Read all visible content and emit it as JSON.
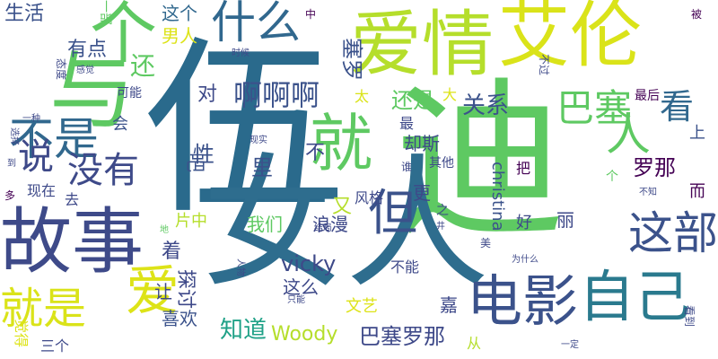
{
  "word_cloud": {
    "background": "#ffffff",
    "words": [
      {
        "text": "伍",
        "color": "#2a6a8c"
      },
      {
        "text": "迪",
        "color": "#5ec962"
      },
      {
        "text": "女人",
        "color": "#2e6d8e"
      },
      {
        "text": "爱情",
        "color": "#b5de2b"
      },
      {
        "text": "艾伦",
        "color": "#dae319"
      },
      {
        "text": "与",
        "color": "#5ec962"
      },
      {
        "text": "个",
        "color": "#5ec962"
      },
      {
        "text": "故事",
        "color": "#3e4a89"
      },
      {
        "text": "就",
        "color": "#5ec962"
      },
      {
        "text": "电影",
        "color": "#3b528b"
      },
      {
        "text": "自己",
        "color": "#2a7a8e"
      },
      {
        "text": "爱",
        "color": "#dde318"
      },
      {
        "text": "就是",
        "color": "#dae319"
      },
      {
        "text": "不是",
        "color": "#31688e"
      },
      {
        "text": "什么",
        "color": "#31688e"
      },
      {
        "text": "说",
        "color": "#3e4989"
      },
      {
        "text": "没有",
        "color": "#3e4a89"
      },
      {
        "text": "但",
        "color": "#3b528b"
      },
      {
        "text": "这部",
        "color": "#3b528b"
      },
      {
        "text": "人",
        "color": "#5ec962"
      },
      {
        "text": "巴塞",
        "color": "#5ec962"
      },
      {
        "text": "看",
        "color": "#31688e"
      },
      {
        "text": "啊啊啊",
        "color": "#3b528b"
      },
      {
        "text": "罗那",
        "color": "#440154"
      },
      {
        "text": "巴塞罗那",
        "color": "#3e4989"
      },
      {
        "text": "知道",
        "color": "#1fa187"
      },
      {
        "text": "Woody",
        "color": "#b5de2b"
      },
      {
        "text": "vicky",
        "color": "#3e4a89"
      },
      {
        "text": "生活",
        "color": "#3b528b"
      },
      {
        "text": "有点",
        "color": "#3b528b"
      },
      {
        "text": "还",
        "color": "#5ec962"
      },
      {
        "text": "这个",
        "color": "#31688e"
      },
      {
        "text": "男人",
        "color": "#dde318"
      },
      {
        "text": "塞罗",
        "color": "#3b528b"
      },
      {
        "text": "关系",
        "color": "#3b528b"
      },
      {
        "text": "还是",
        "color": "#5ec962"
      },
      {
        "text": "对",
        "color": "#3e4a89"
      },
      {
        "text": "性",
        "color": "#3b528b"
      },
      {
        "text": "里",
        "color": "#3b528b"
      },
      {
        "text": "吧",
        "color": "#3b528b"
      },
      {
        "text": "不",
        "color": "#3e4989"
      },
      {
        "text": "又",
        "color": "#b5de2b"
      },
      {
        "text": "浪漫",
        "color": "#3e4989"
      },
      {
        "text": "我们",
        "color": "#5ec962"
      },
      {
        "text": "着",
        "color": "#3e4989"
      },
      {
        "text": "让",
        "color": "#3e4989"
      },
      {
        "text": "探讨",
        "color": "#3e4989"
      },
      {
        "text": "喜欢",
        "color": "#3b528b"
      },
      {
        "text": "这么",
        "color": "#3e4989"
      },
      {
        "text": "文艺",
        "color": "#dde318"
      },
      {
        "text": "斯",
        "color": "#3e4989"
      },
      {
        "text": "却",
        "color": "#3e4989"
      },
      {
        "text": "更",
        "color": "#3e4989"
      },
      {
        "text": "风格",
        "color": "#3e4989"
      },
      {
        "text": "不能",
        "color": "#3e4989"
      },
      {
        "text": "嘉",
        "color": "#3e4989"
      },
      {
        "text": "christina",
        "color": "#3b528b"
      },
      {
        "text": "好",
        "color": "#3e4989"
      },
      {
        "text": "丽",
        "color": "#3e4989"
      },
      {
        "text": "把",
        "color": "#440154"
      },
      {
        "text": "上",
        "color": "#3b528b"
      },
      {
        "text": "而",
        "color": "#440154"
      },
      {
        "text": "最后",
        "color": "#440154"
      },
      {
        "text": "可能",
        "color": "#3e4989"
      },
      {
        "text": "会",
        "color": "#3b528b"
      },
      {
        "text": "现在",
        "color": "#3e4a89"
      },
      {
        "text": "去",
        "color": "#3e4989"
      },
      {
        "text": "多",
        "color": "#440154"
      },
      {
        "text": "片中",
        "color": "#b5de2b"
      },
      {
        "text": "三个",
        "color": "#3e4989"
      },
      {
        "text": "觉得",
        "color": "#dde318"
      },
      {
        "text": "从",
        "color": "#b5de2b"
      },
      {
        "text": "一部",
        "color": "#5ec962"
      },
      {
        "text": "中",
        "color": "#440154"
      },
      {
        "text": "被",
        "color": "#440154"
      },
      {
        "text": "太",
        "color": "#dae319"
      },
      {
        "text": "大",
        "color": "#dde318"
      },
      {
        "text": "最",
        "color": "#3e4989"
      },
      {
        "text": "其他",
        "color": "#3e4989"
      },
      {
        "text": "之",
        "color": "#3e4989"
      },
      {
        "text": "谁",
        "color": "#3e4989"
      },
      {
        "text": "个",
        "color": "#5ec962"
      },
      {
        "text": "不知",
        "color": "#3e4989"
      },
      {
        "text": "美",
        "color": "#3e4989"
      },
      {
        "text": "为什么",
        "color": "#3e4989"
      },
      {
        "text": "一定",
        "color": "#3e4989"
      },
      {
        "text": "看到",
        "color": "#3e4989"
      },
      {
        "text": "地",
        "color": "#5ec962"
      },
      {
        "text": "人物",
        "color": "#3e4989"
      },
      {
        "text": "只能",
        "color": "#3e4989"
      },
      {
        "text": "井",
        "color": "#3e4989"
      },
      {
        "text": "不过",
        "color": "#3e4989"
      },
      {
        "text": "时候",
        "color": "#3e4989"
      },
      {
        "text": "态度",
        "color": "#3e4989"
      },
      {
        "text": "感觉",
        "color": "#3e4989"
      },
      {
        "text": "现实",
        "color": "#3e4989"
      },
      {
        "text": "选择",
        "color": "#3e4989"
      },
      {
        "text": "一种",
        "color": "#3e4989"
      },
      {
        "text": "到",
        "color": "#3e4989"
      },
      {
        "text": "结局",
        "color": "#3e4989"
      }
    ]
  }
}
